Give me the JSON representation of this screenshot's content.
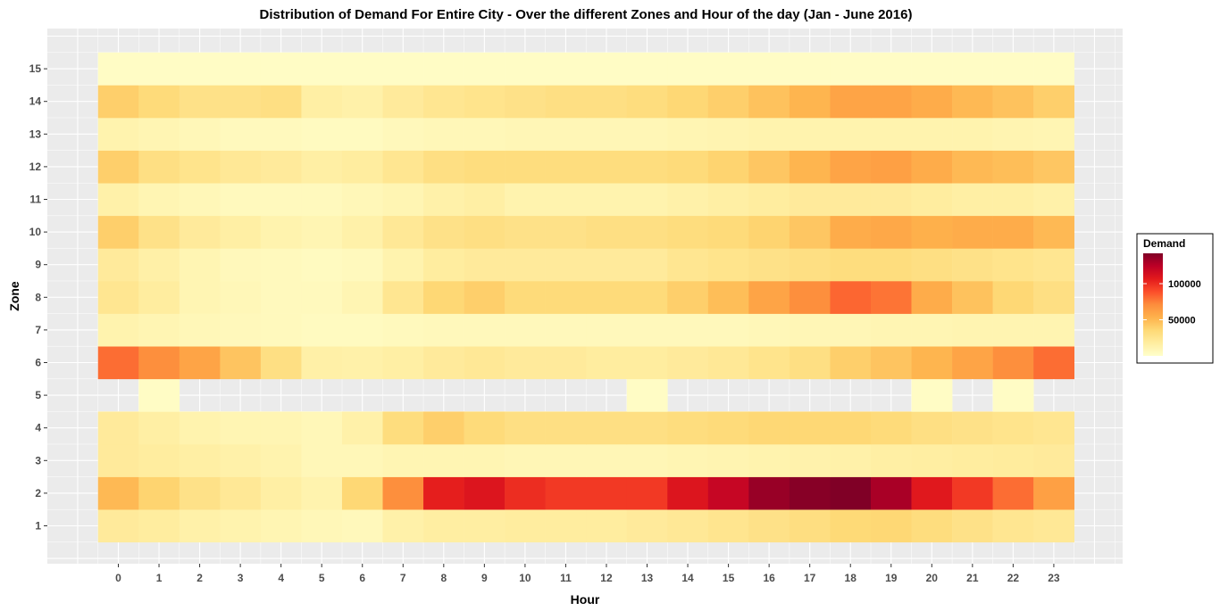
{
  "chart_data": {
    "type": "heatmap",
    "title": "Distribution of Demand For Entire City - Over the different Zones and Hour of the day (Jan - June 2016)",
    "xlabel": "Hour",
    "ylabel": "Zone",
    "x": [
      "0",
      "1",
      "2",
      "3",
      "4",
      "5",
      "6",
      "7",
      "8",
      "9",
      "10",
      "11",
      "12",
      "13",
      "14",
      "15",
      "16",
      "17",
      "18",
      "19",
      "20",
      "21",
      "22",
      "23"
    ],
    "y": [
      "1",
      "2",
      "3",
      "4",
      "5",
      "6",
      "7",
      "8",
      "9",
      "10",
      "11",
      "12",
      "13",
      "14",
      "15"
    ],
    "values": [
      [
        20000,
        18000,
        14000,
        12000,
        10000,
        8000,
        7000,
        14000,
        17000,
        17000,
        18000,
        18000,
        18000,
        20000,
        22000,
        25000,
        28000,
        31000,
        35000,
        36000,
        32000,
        28000,
        24000,
        22000
      ],
      [
        50000,
        38000,
        28000,
        22000,
        16000,
        12000,
        36000,
        70000,
        105000,
        110000,
        100000,
        96000,
        96000,
        96000,
        110000,
        120000,
        135000,
        140000,
        142000,
        130000,
        108000,
        96000,
        80000,
        62000
      ],
      [
        20000,
        18000,
        16000,
        14000,
        12000,
        8000,
        8000,
        10000,
        10000,
        10000,
        9000,
        9000,
        9000,
        9000,
        10000,
        11000,
        12000,
        13000,
        14000,
        16000,
        17000,
        18000,
        19000,
        20000
      ],
      [
        20000,
        16000,
        12000,
        10000,
        10000,
        8000,
        14000,
        32000,
        40000,
        34000,
        30000,
        30000,
        30000,
        30000,
        32000,
        34000,
        36000,
        36000,
        36000,
        34000,
        30000,
        28000,
        26000,
        24000
      ],
      [
        null,
        3000,
        null,
        null,
        null,
        null,
        null,
        null,
        null,
        null,
        null,
        null,
        null,
        3000,
        null,
        null,
        null,
        null,
        null,
        null,
        3000,
        null,
        3000,
        null
      ],
      [
        80000,
        70000,
        60000,
        45000,
        30000,
        15000,
        14000,
        16000,
        20000,
        22000,
        20000,
        20000,
        18000,
        18000,
        20000,
        22000,
        26000,
        30000,
        40000,
        45000,
        52000,
        60000,
        70000,
        80000
      ],
      [
        12000,
        10000,
        8000,
        7000,
        6000,
        5000,
        5000,
        6000,
        7000,
        7000,
        7000,
        7000,
        7000,
        7000,
        7000,
        7000,
        8000,
        9000,
        9000,
        10000,
        10000,
        11000,
        11000,
        11000
      ],
      [
        24000,
        18000,
        10000,
        8000,
        6000,
        6000,
        10000,
        24000,
        36000,
        40000,
        34000,
        34000,
        34000,
        34000,
        40000,
        48000,
        60000,
        70000,
        82000,
        78000,
        56000,
        46000,
        36000,
        30000
      ],
      [
        20000,
        15000,
        10000,
        7000,
        6000,
        5000,
        6000,
        12000,
        18000,
        20000,
        20000,
        20000,
        20000,
        20000,
        24000,
        26000,
        28000,
        30000,
        32000,
        32000,
        30000,
        28000,
        26000,
        24000
      ],
      [
        40000,
        28000,
        20000,
        16000,
        12000,
        10000,
        14000,
        22000,
        28000,
        30000,
        28000,
        28000,
        30000,
        30000,
        32000,
        34000,
        38000,
        44000,
        56000,
        58000,
        54000,
        56000,
        56000,
        50000
      ],
      [
        14000,
        10000,
        8000,
        6000,
        6000,
        6000,
        8000,
        10000,
        14000,
        16000,
        12000,
        12000,
        12000,
        12000,
        14000,
        16000,
        18000,
        20000,
        20000,
        20000,
        18000,
        16000,
        16000,
        14000
      ],
      [
        40000,
        30000,
        26000,
        22000,
        20000,
        16000,
        18000,
        24000,
        30000,
        32000,
        32000,
        32000,
        32000,
        32000,
        34000,
        38000,
        44000,
        52000,
        60000,
        62000,
        56000,
        50000,
        48000,
        44000
      ],
      [
        12000,
        10000,
        8000,
        6000,
        6000,
        5000,
        5000,
        7000,
        8000,
        8000,
        9000,
        9000,
        9000,
        9000,
        10000,
        11000,
        12000,
        12000,
        12000,
        12000,
        12000,
        12000,
        11000,
        10000
      ],
      [
        40000,
        34000,
        28000,
        28000,
        30000,
        16000,
        14000,
        20000,
        24000,
        26000,
        28000,
        30000,
        30000,
        32000,
        36000,
        40000,
        46000,
        52000,
        60000,
        60000,
        56000,
        50000,
        46000,
        40000
      ],
      [
        3000,
        3000,
        3000,
        3000,
        3000,
        3000,
        3000,
        3000,
        3000,
        3000,
        3000,
        3000,
        3000,
        3000,
        3000,
        3000,
        3000,
        3000,
        3000,
        3000,
        3000,
        3000,
        3000,
        3000
      ]
    ],
    "color_scale": {
      "stops": [
        "#ffffcc",
        "#ffeda0",
        "#fed976",
        "#feb24c",
        "#fd8d3c",
        "#fc4e2a",
        "#e31a1c",
        "#bd0026",
        "#800026"
      ],
      "min": 0,
      "max": 142000
    },
    "legend": {
      "title": "Demand",
      "ticks": [
        "50000",
        "100000"
      ],
      "position": "right"
    },
    "grid": true
  }
}
